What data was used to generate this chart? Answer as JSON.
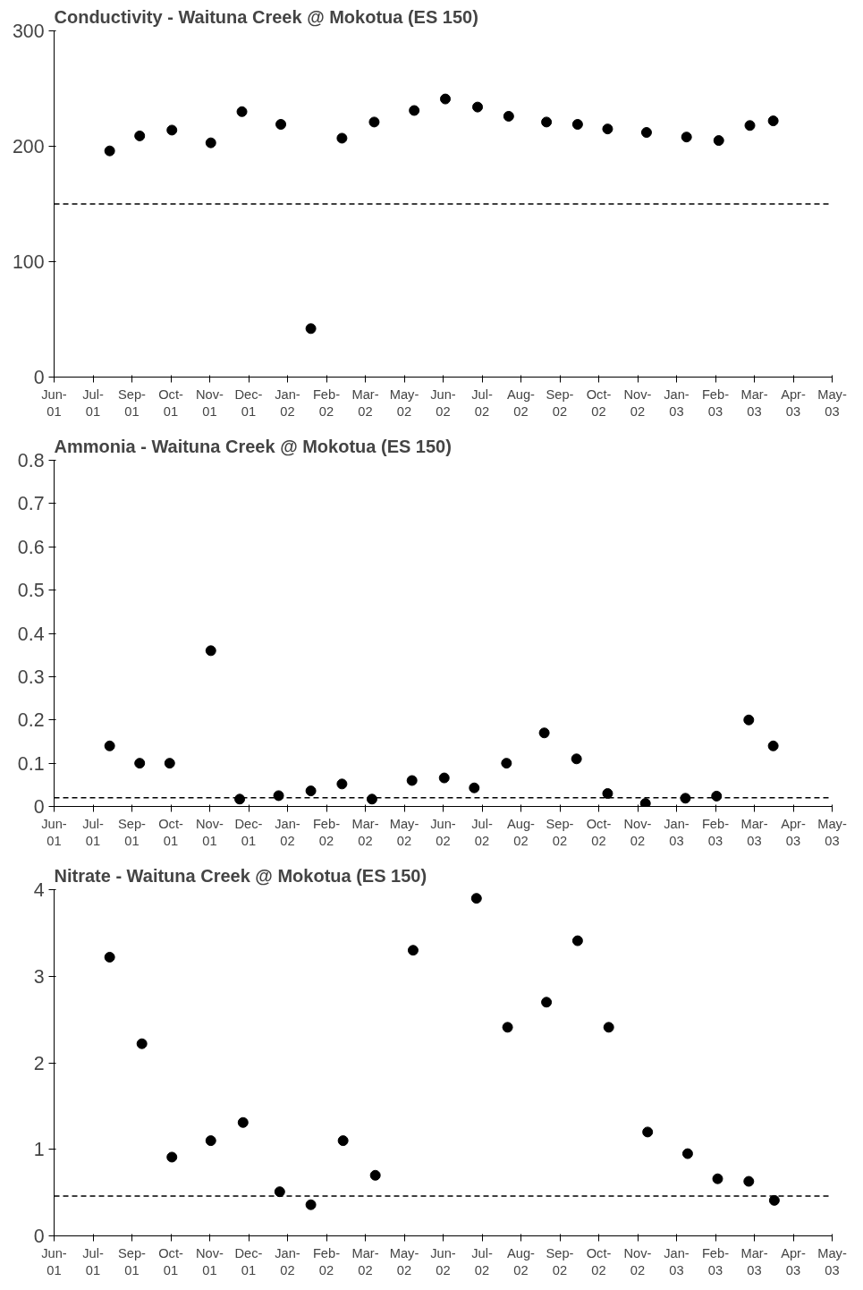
{
  "chart_data": [
    {
      "type": "scatter",
      "title": "Conductivity - Waituna Creek @ Mokotua (ES 150)",
      "marker": "circle",
      "grid": false,
      "x": [
        "2001-08-12",
        "2001-09-08",
        "2001-10-07",
        "2001-11-11",
        "2001-12-09",
        "2002-01-13",
        "2002-02-09",
        "2002-03-09",
        "2002-04-07",
        "2002-05-13",
        "2002-06-10",
        "2002-07-09",
        "2002-08-06",
        "2002-09-09",
        "2002-10-07",
        "2002-11-03",
        "2002-12-08",
        "2003-01-13",
        "2003-02-11",
        "2003-03-11",
        "2003-04-01"
      ],
      "series": [
        {
          "color": "#000000",
          "values": [
            196,
            209,
            214,
            203,
            230,
            219,
            42,
            207,
            221,
            231,
            241,
            234,
            226,
            221,
            219,
            215,
            212,
            208,
            205,
            218,
            222
          ]
        }
      ],
      "xlim": [
        "2001-06-23",
        "2003-05-24"
      ],
      "ylim": [
        0,
        300
      ],
      "yticks": [
        0,
        100,
        200,
        300
      ],
      "xticks": [
        {
          "value": "2001-06-23",
          "label": "Jun-01"
        },
        {
          "value": "2001-07-28",
          "label": "Jul-01"
        },
        {
          "value": "2001-09-01",
          "label": "Sep-01"
        },
        {
          "value": "2001-10-06",
          "label": "Oct-01"
        },
        {
          "value": "2001-11-10",
          "label": "Nov-01"
        },
        {
          "value": "2001-12-15",
          "label": "Dec-01"
        },
        {
          "value": "2002-01-19",
          "label": "Jan-02"
        },
        {
          "value": "2002-02-23",
          "label": "Feb-02"
        },
        {
          "value": "2002-03-30",
          "label": "Mar-02"
        },
        {
          "value": "2002-05-04",
          "label": "May-02"
        },
        {
          "value": "2002-06-08",
          "label": "Jun-02"
        },
        {
          "value": "2002-07-13",
          "label": "Jul-02"
        },
        {
          "value": "2002-08-17",
          "label": "Aug-02"
        },
        {
          "value": "2002-09-21",
          "label": "Sep-02"
        },
        {
          "value": "2002-10-26",
          "label": "Oct-02"
        },
        {
          "value": "2002-11-30",
          "label": "Nov-02"
        },
        {
          "value": "2003-01-04",
          "label": "Jan-03"
        },
        {
          "value": "2003-02-08",
          "label": "Feb-03"
        },
        {
          "value": "2003-03-15",
          "label": "Mar-03"
        },
        {
          "value": "2003-04-19",
          "label": "Apr-03"
        },
        {
          "value": "2003-05-24",
          "label": "May-03"
        }
      ],
      "ref_lines": [
        {
          "axis": "y",
          "value": 150,
          "label": null,
          "color": "#000000",
          "line_style": "dashed"
        }
      ]
    },
    {
      "type": "scatter",
      "title": "Ammonia - Waituna Creek @ Mokotua (ES 150)",
      "marker": "circle",
      "grid": false,
      "x": [
        "2001-08-12",
        "2001-09-08",
        "2001-10-05",
        "2001-11-11",
        "2001-12-07",
        "2002-01-11",
        "2002-02-09",
        "2002-03-09",
        "2002-04-05",
        "2002-05-11",
        "2002-06-09",
        "2002-07-06",
        "2002-08-04",
        "2002-09-07",
        "2002-10-06",
        "2002-11-03",
        "2002-12-07",
        "2003-01-12",
        "2003-02-09",
        "2003-03-10",
        "2003-04-01"
      ],
      "series": [
        {
          "color": "#000000",
          "values": [
            0.14,
            0.1,
            0.1,
            0.36,
            0.017,
            0.025,
            0.036,
            0.052,
            0.017,
            0.06,
            0.066,
            0.043,
            0.1,
            0.17,
            0.11,
            0.03,
            0.007,
            0.019,
            0.024,
            0.2,
            0.14
          ]
        }
      ],
      "xlim": [
        "2001-06-23",
        "2003-05-24"
      ],
      "ylim": [
        0,
        0.8
      ],
      "yticks": [
        0,
        0.1,
        0.2,
        0.3,
        0.4,
        0.5,
        0.6,
        0.7,
        0.8
      ],
      "xticks": [
        {
          "value": "2001-06-23",
          "label": "Jun-01"
        },
        {
          "value": "2001-07-28",
          "label": "Jul-01"
        },
        {
          "value": "2001-09-01",
          "label": "Sep-01"
        },
        {
          "value": "2001-10-06",
          "label": "Oct-01"
        },
        {
          "value": "2001-11-10",
          "label": "Nov-01"
        },
        {
          "value": "2001-12-15",
          "label": "Dec-01"
        },
        {
          "value": "2002-01-19",
          "label": "Jan-02"
        },
        {
          "value": "2002-02-23",
          "label": "Feb-02"
        },
        {
          "value": "2002-03-30",
          "label": "Mar-02"
        },
        {
          "value": "2002-05-04",
          "label": "May-02"
        },
        {
          "value": "2002-06-08",
          "label": "Jun-02"
        },
        {
          "value": "2002-07-13",
          "label": "Jul-02"
        },
        {
          "value": "2002-08-17",
          "label": "Aug-02"
        },
        {
          "value": "2002-09-21",
          "label": "Sep-02"
        },
        {
          "value": "2002-10-26",
          "label": "Oct-02"
        },
        {
          "value": "2002-11-30",
          "label": "Nov-02"
        },
        {
          "value": "2003-01-04",
          "label": "Jan-03"
        },
        {
          "value": "2003-02-08",
          "label": "Feb-03"
        },
        {
          "value": "2003-03-15",
          "label": "Mar-03"
        },
        {
          "value": "2003-04-19",
          "label": "Apr-03"
        },
        {
          "value": "2003-05-24",
          "label": "May-03"
        }
      ],
      "ref_lines": [
        {
          "axis": "y",
          "value": 0.02,
          "label": null,
          "color": "#000000",
          "line_style": "dashed"
        }
      ]
    },
    {
      "type": "scatter",
      "title": "Nitrate - Waituna Creek @ Mokotua (ES 150)",
      "marker": "circle",
      "grid": false,
      "x": [
        "2001-08-12",
        "2001-09-10",
        "2001-10-07",
        "2001-11-11",
        "2001-12-10",
        "2002-01-12",
        "2002-02-09",
        "2002-03-10",
        "2002-04-08",
        "2002-05-12",
        "2002-07-08",
        "2002-08-05",
        "2002-09-09",
        "2002-10-07",
        "2002-11-04",
        "2002-12-09",
        "2003-01-14",
        "2003-02-10",
        "2003-03-10",
        "2003-04-02"
      ],
      "series": [
        {
          "color": "#000000",
          "values": [
            3.22,
            2.22,
            0.91,
            1.1,
            1.31,
            0.51,
            0.36,
            1.1,
            0.7,
            3.3,
            3.9,
            2.41,
            2.7,
            3.41,
            2.41,
            1.2,
            0.95,
            0.66,
            0.63,
            0.41
          ]
        }
      ],
      "xlim": [
        "2001-06-23",
        "2003-05-24"
      ],
      "ylim": [
        0,
        4
      ],
      "yticks": [
        0,
        1,
        2,
        3,
        4
      ],
      "xticks": [
        {
          "value": "2001-06-23",
          "label": "Jun-01"
        },
        {
          "value": "2001-07-28",
          "label": "Jul-01"
        },
        {
          "value": "2001-09-01",
          "label": "Sep-01"
        },
        {
          "value": "2001-10-06",
          "label": "Oct-01"
        },
        {
          "value": "2001-11-10",
          "label": "Nov-01"
        },
        {
          "value": "2001-12-15",
          "label": "Dec-01"
        },
        {
          "value": "2002-01-19",
          "label": "Jan-02"
        },
        {
          "value": "2002-02-23",
          "label": "Feb-02"
        },
        {
          "value": "2002-03-30",
          "label": "Mar-02"
        },
        {
          "value": "2002-05-04",
          "label": "May-02"
        },
        {
          "value": "2002-06-08",
          "label": "Jun-02"
        },
        {
          "value": "2002-07-13",
          "label": "Jul-02"
        },
        {
          "value": "2002-08-17",
          "label": "Aug-02"
        },
        {
          "value": "2002-09-21",
          "label": "Sep-02"
        },
        {
          "value": "2002-10-26",
          "label": "Oct-02"
        },
        {
          "value": "2002-11-30",
          "label": "Nov-02"
        },
        {
          "value": "2003-01-04",
          "label": "Jan-03"
        },
        {
          "value": "2003-02-08",
          "label": "Feb-03"
        },
        {
          "value": "2003-03-15",
          "label": "Mar-03"
        },
        {
          "value": "2003-04-19",
          "label": "Apr-03"
        },
        {
          "value": "2003-05-24",
          "label": "May-03"
        }
      ],
      "ref_lines": [
        {
          "axis": "y",
          "value": 0.46,
          "label": null,
          "color": "#000000",
          "line_style": "dashed"
        }
      ]
    }
  ]
}
